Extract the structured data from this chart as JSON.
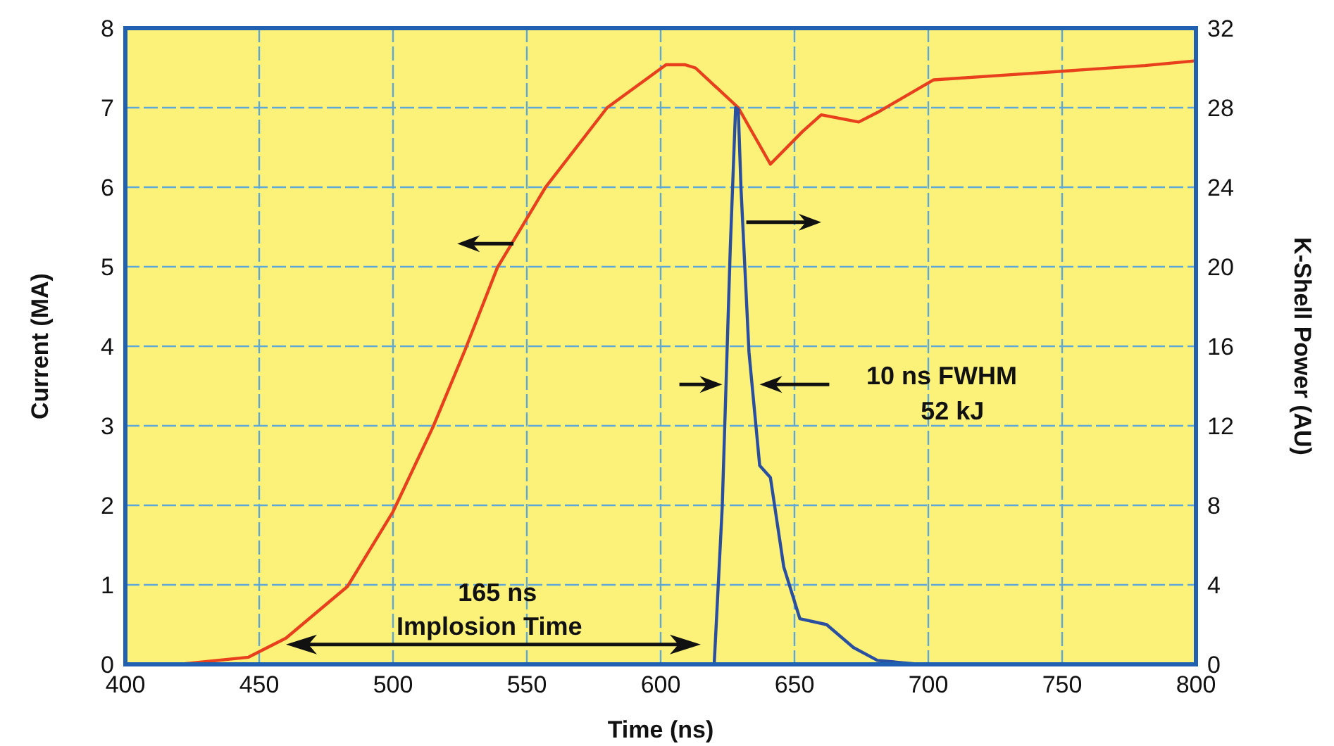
{
  "chart_data": {
    "type": "line",
    "xlabel": "Time (ns)",
    "ylabel": "Current (MA)",
    "y2label": "K-Shell Power (AU)",
    "xlim": [
      400,
      800
    ],
    "xticks": [
      400,
      450,
      500,
      550,
      600,
      650,
      700,
      750,
      800
    ],
    "ylim": [
      0,
      8
    ],
    "yticks": [
      0,
      1,
      2,
      3,
      4,
      5,
      6,
      7,
      8
    ],
    "y2lim": [
      0,
      32
    ],
    "y2ticks": [
      0,
      4,
      8,
      12,
      16,
      20,
      24,
      28,
      32
    ],
    "grid": true,
    "line_style": "solid",
    "series": [
      {
        "color": "#e8401c",
        "x": [
          420,
          446,
          460,
          483,
          500,
          515,
          527,
          539,
          557,
          580,
          602,
          609,
          613,
          629,
          641,
          653,
          660,
          674,
          681,
          702,
          729,
          755,
          781,
          800
        ],
        "values": [
          0,
          0.09,
          0.33,
          0.98,
          1.92,
          2.99,
          3.96,
          4.99,
          6.0,
          7.0,
          7.54,
          7.54,
          7.5,
          7.0,
          6.29,
          6.7,
          6.91,
          6.82,
          6.94,
          7.35,
          7.41,
          7.47,
          7.53,
          7.59
        ]
      },
      {
        "color": "#2a4fa0",
        "axis": "y2",
        "x": [
          605,
          620,
          623,
          626,
          628,
          629,
          630,
          633,
          637,
          641,
          646,
          652,
          662,
          672,
          681,
          697
        ],
        "values": [
          0,
          0,
          7.9,
          20.9,
          28,
          27.9,
          24,
          15.7,
          10,
          9.4,
          4.9,
          2.3,
          2,
          0.85,
          0.2,
          0
        ]
      }
    ],
    "annotations": [
      "165 ns",
      "Implosion Time",
      "10 ns FWHM",
      "52 kJ"
    ]
  }
}
